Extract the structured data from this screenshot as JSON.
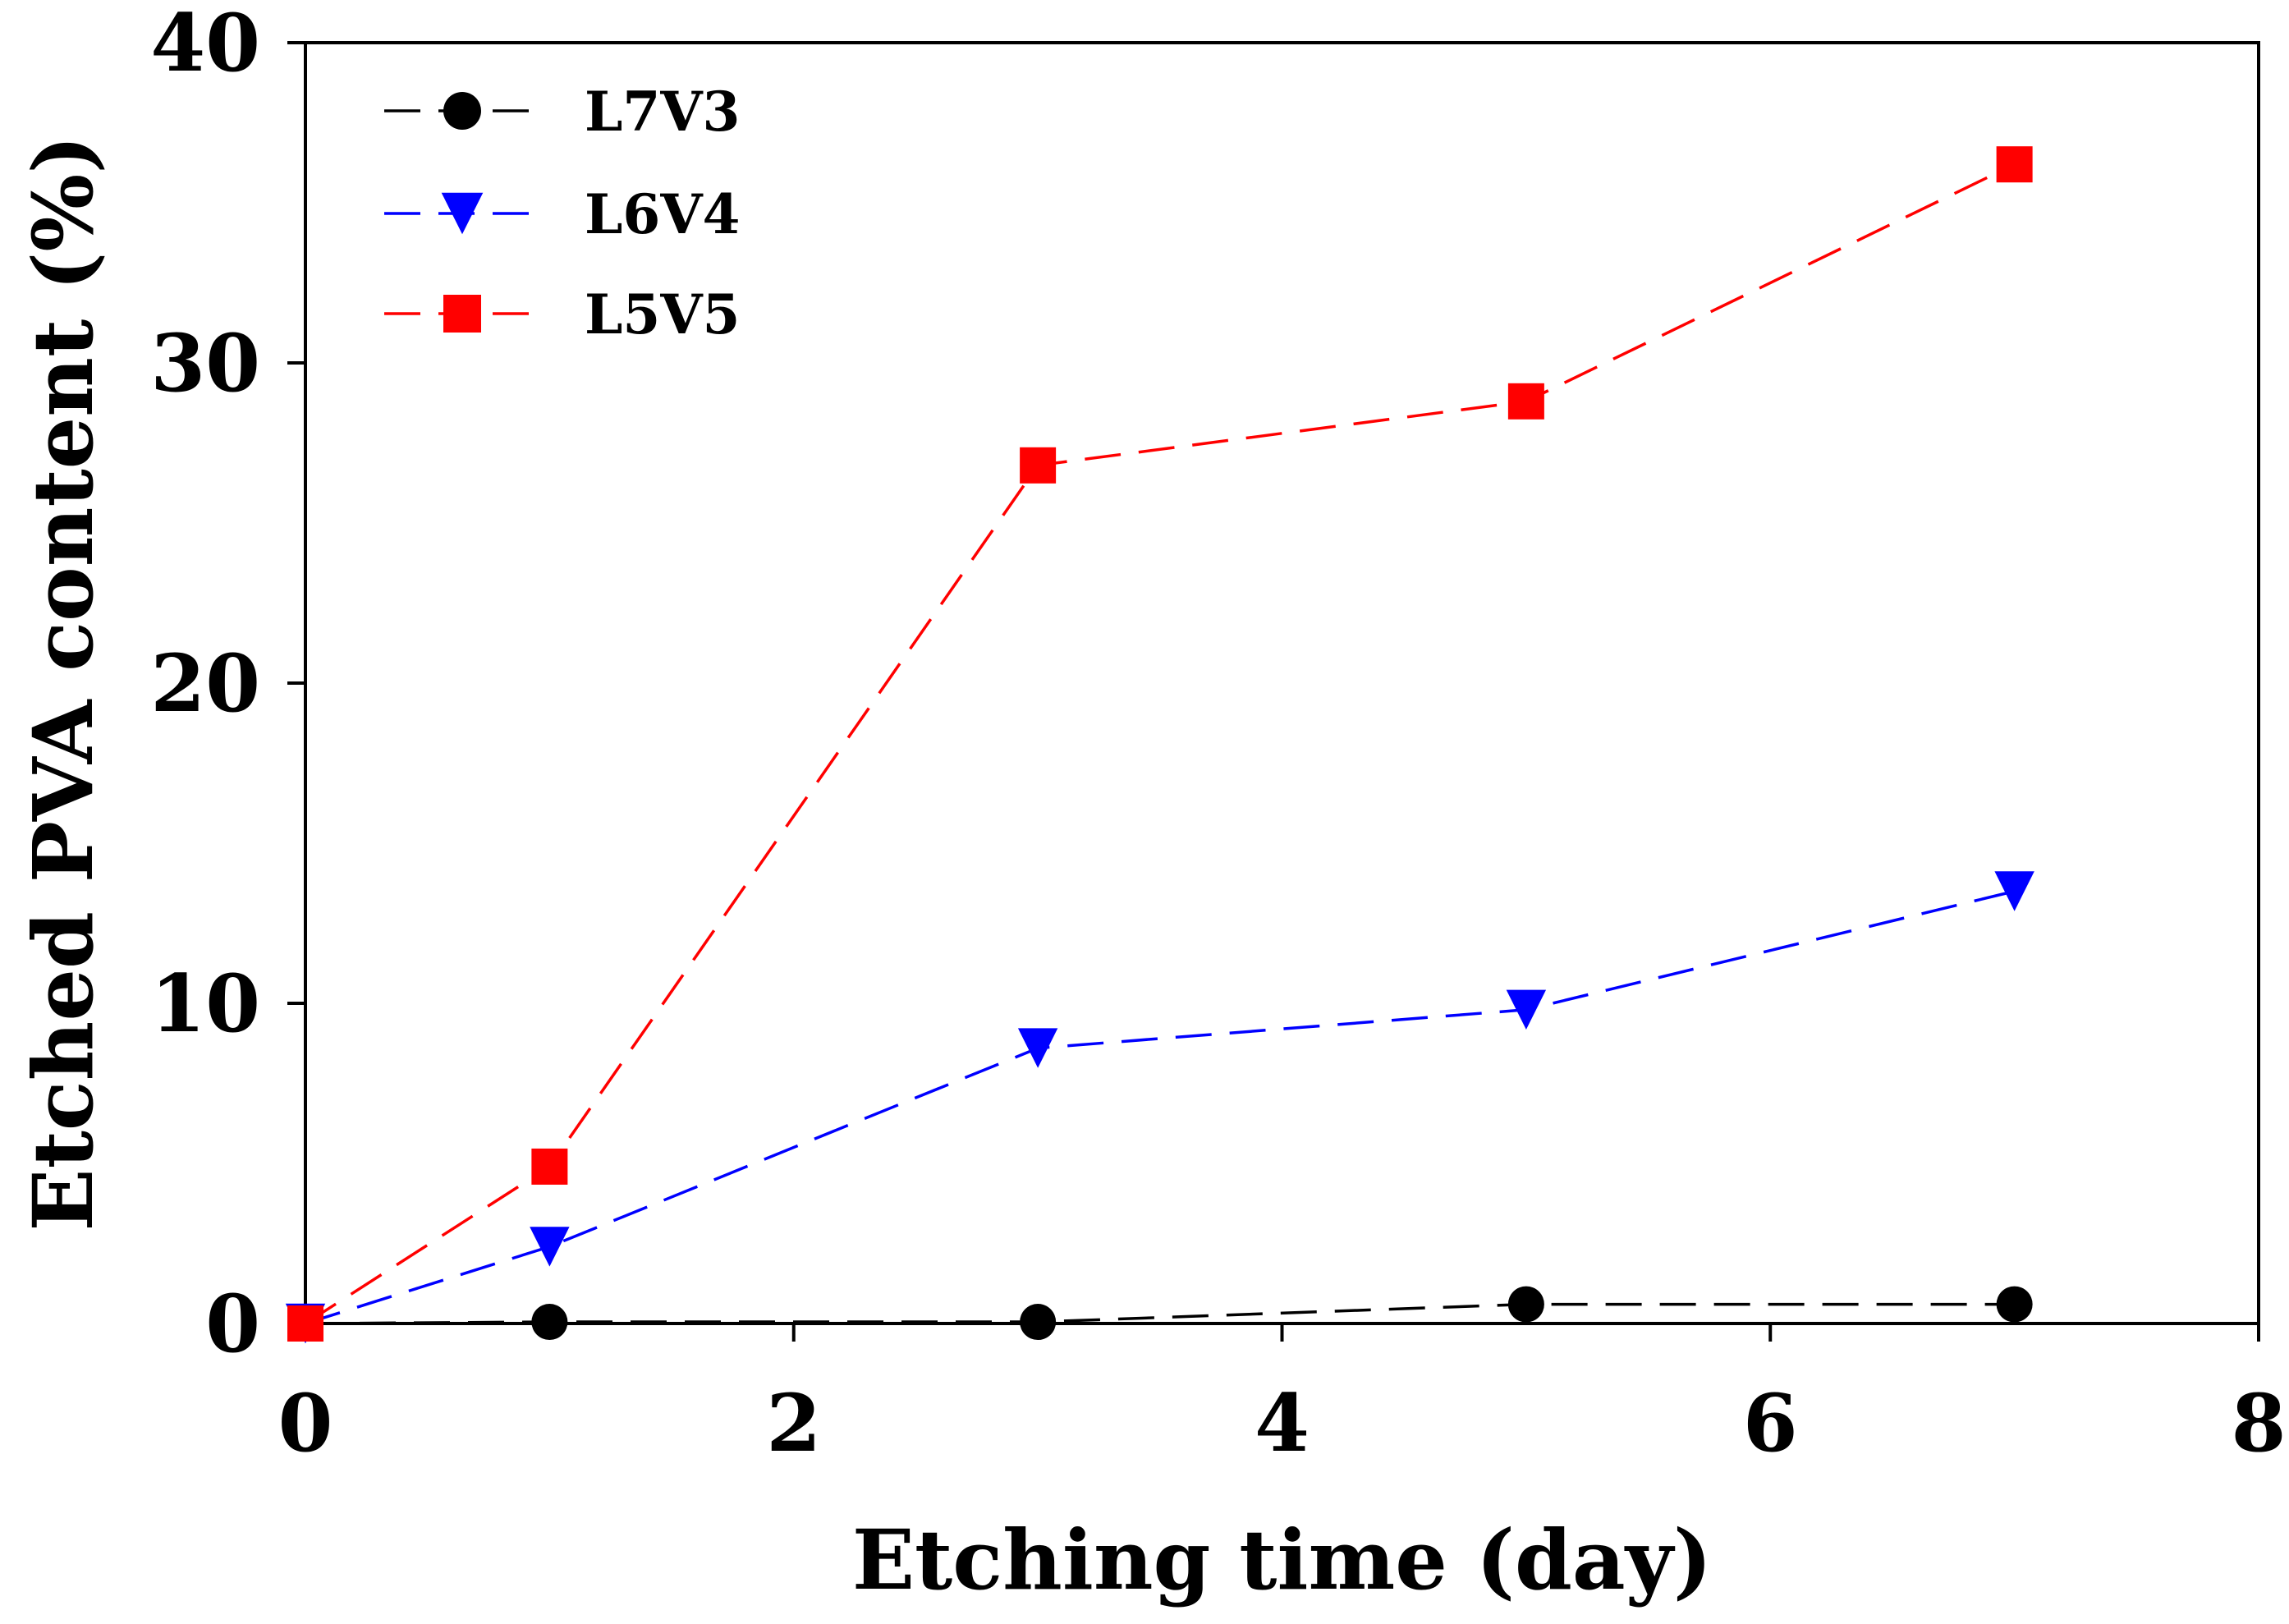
{
  "chart_data": {
    "type": "line",
    "title": "",
    "xlabel": "Etching time (day)",
    "ylabel": "Etched PVA content (%)",
    "xlim": [
      0,
      8
    ],
    "ylim": [
      0,
      40
    ],
    "xticks": [
      0,
      2,
      4,
      6,
      8
    ],
    "yticks": [
      0,
      10,
      20,
      30,
      40
    ],
    "x_tick_labels": [
      "0",
      "2",
      "4",
      "6",
      "8"
    ],
    "y_tick_labels": [
      "0",
      "10",
      "20",
      "30",
      "40"
    ],
    "grid": false,
    "legend_position": "top-left",
    "x": [
      0,
      1,
      3,
      5,
      7
    ],
    "series": [
      {
        "name": "L7V3",
        "marker": "circle",
        "color": "#000000",
        "line_style": "dashed",
        "values": [
          0,
          0.05,
          0.05,
          0.6,
          0.6
        ]
      },
      {
        "name": "L6V4",
        "marker": "triangle-down",
        "color": "#0000ff",
        "line_style": "dashed",
        "values": [
          0,
          2.4,
          8.6,
          9.8,
          13.5
        ]
      },
      {
        "name": "L5V5",
        "marker": "square",
        "color": "#ff0000",
        "line_style": "dashed",
        "values": [
          0,
          4.9,
          26.8,
          28.8,
          36.2
        ]
      }
    ]
  }
}
